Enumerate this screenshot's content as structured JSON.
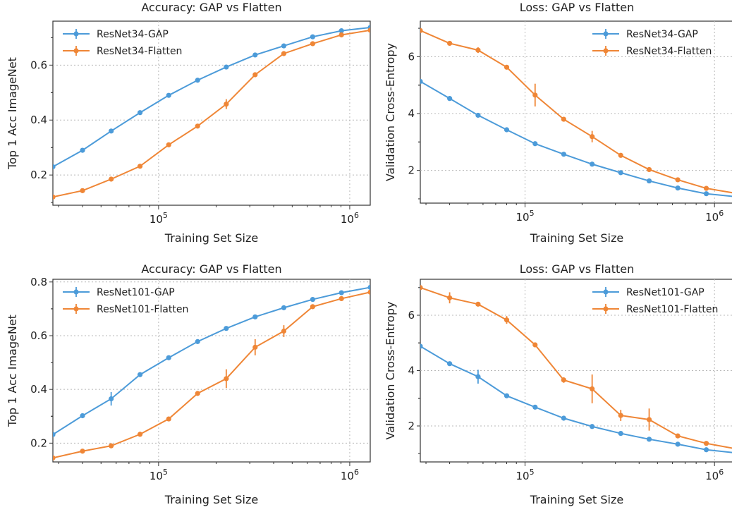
{
  "chart_data": [
    {
      "type": "line",
      "title": "Accuracy: GAP vs Flatten",
      "xlabel": "Training Set Size",
      "ylabel": "Top 1 Acc ImageNet",
      "xscale": "log",
      "xlim": [
        28000,
        1280000
      ],
      "ylim": [
        0.09,
        0.76
      ],
      "xticks": [
        {
          "value": 100000,
          "base": "10",
          "exp": "5"
        },
        {
          "value": 1000000,
          "base": "10",
          "exp": "6"
        }
      ],
      "yticks": [
        {
          "value": 0.2,
          "label": "0.2"
        },
        {
          "value": 0.4,
          "label": "0.4"
        },
        {
          "value": 0.6,
          "label": "0.6"
        }
      ],
      "grid": true,
      "legend": "top-left",
      "x": [
        28000,
        40000,
        56500,
        80000,
        113000,
        160000,
        226000,
        320000,
        452000,
        640000,
        905000,
        1281000
      ],
      "series": [
        {
          "name": "ResNet34-GAP",
          "color": "#4c9bd9",
          "values": [
            0.23,
            0.29,
            0.36,
            0.427,
            0.49,
            0.545,
            0.593,
            0.637,
            0.67,
            0.703,
            0.725,
            0.737
          ],
          "errors": [
            0.003,
            0.003,
            0.004,
            0.004,
            0.004,
            0.004,
            0.004,
            0.004,
            0.003,
            0.003,
            0.003,
            0.003
          ]
        },
        {
          "name": "ResNet34-Flatten",
          "color": "#ef8636",
          "values": [
            0.12,
            0.143,
            0.185,
            0.232,
            0.31,
            0.378,
            0.458,
            0.565,
            0.642,
            0.678,
            0.71,
            0.727
          ],
          "errors": [
            0.003,
            0.003,
            0.005,
            0.004,
            0.006,
            0.004,
            0.018,
            0.006,
            0.006,
            0.004,
            0.004,
            0.003
          ]
        }
      ]
    },
    {
      "type": "line",
      "title": "Loss: GAP vs Flatten",
      "xlabel": "Training Set Size",
      "ylabel": "Validation Cross-Entropy",
      "xscale": "log",
      "xlim": [
        28000,
        1280000
      ],
      "ylim": [
        0.85,
        7.25
      ],
      "xticks": [
        {
          "value": 100000,
          "base": "10",
          "exp": "5"
        },
        {
          "value": 1000000,
          "base": "10",
          "exp": "6"
        }
      ],
      "yticks": [
        {
          "value": 2,
          "label": "2"
        },
        {
          "value": 4,
          "label": "4"
        },
        {
          "value": 6,
          "label": "6"
        }
      ],
      "grid": true,
      "legend": "top-right",
      "x": [
        28000,
        40000,
        56500,
        80000,
        113000,
        160000,
        226000,
        320000,
        452000,
        640000,
        905000,
        1281000
      ],
      "series": [
        {
          "name": "ResNet34-GAP",
          "color": "#4c9bd9",
          "values": [
            5.13,
            4.53,
            3.94,
            3.43,
            2.94,
            2.57,
            2.22,
            1.92,
            1.63,
            1.38,
            1.18,
            1.08
          ],
          "errors": [
            0.05,
            0.04,
            0.04,
            0.04,
            0.04,
            0.04,
            0.04,
            0.04,
            0.03,
            0.03,
            0.03,
            0.03
          ]
        },
        {
          "name": "ResNet34-Flatten",
          "color": "#ef8636",
          "values": [
            6.92,
            6.47,
            6.23,
            5.63,
            4.65,
            3.8,
            3.19,
            2.53,
            2.03,
            1.67,
            1.37,
            1.2
          ],
          "errors": [
            0.05,
            0.05,
            0.1,
            0.05,
            0.4,
            0.05,
            0.2,
            0.05,
            0.04,
            0.04,
            0.04,
            0.03
          ]
        }
      ]
    },
    {
      "type": "line",
      "title": "Accuracy: GAP vs Flatten",
      "xlabel": "Training Set Size",
      "ylabel": "Top 1 Acc ImageNet",
      "xscale": "log",
      "xlim": [
        28000,
        1280000
      ],
      "ylim": [
        0.13,
        0.81
      ],
      "xticks": [
        {
          "value": 100000,
          "base": "10",
          "exp": "5"
        },
        {
          "value": 1000000,
          "base": "10",
          "exp": "6"
        }
      ],
      "yticks": [
        {
          "value": 0.2,
          "label": "0.2"
        },
        {
          "value": 0.4,
          "label": "0.4"
        },
        {
          "value": 0.6,
          "label": "0.6"
        },
        {
          "value": 0.8,
          "label": "0.8"
        }
      ],
      "grid": true,
      "legend": "top-left",
      "x": [
        28000,
        40000,
        56500,
        80000,
        113000,
        160000,
        226000,
        320000,
        452000,
        640000,
        905000,
        1281000
      ],
      "series": [
        {
          "name": "ResNet101-GAP",
          "color": "#4c9bd9",
          "values": [
            0.232,
            0.302,
            0.365,
            0.455,
            0.518,
            0.578,
            0.627,
            0.67,
            0.704,
            0.735,
            0.76,
            0.78
          ],
          "errors": [
            0.004,
            0.004,
            0.025,
            0.005,
            0.005,
            0.004,
            0.004,
            0.004,
            0.004,
            0.003,
            0.003,
            0.003
          ]
        },
        {
          "name": "ResNet101-Flatten",
          "color": "#ef8636",
          "values": [
            0.145,
            0.17,
            0.19,
            0.233,
            0.29,
            0.385,
            0.44,
            0.557,
            0.617,
            0.708,
            0.738,
            0.762
          ],
          "errors": [
            0.004,
            0.004,
            0.005,
            0.005,
            0.005,
            0.006,
            0.035,
            0.03,
            0.022,
            0.006,
            0.005,
            0.004
          ]
        }
      ]
    },
    {
      "type": "line",
      "title": "Loss: GAP vs Flatten",
      "xlabel": "Training Set Size",
      "ylabel": "Validation Cross-Entropy",
      "xscale": "log",
      "xlim": [
        28000,
        1280000
      ],
      "ylim": [
        0.7,
        7.3
      ],
      "xticks": [
        {
          "value": 100000,
          "base": "10",
          "exp": "5"
        },
        {
          "value": 1000000,
          "base": "10",
          "exp": "6"
        }
      ],
      "yticks": [
        {
          "value": 2,
          "label": "2"
        },
        {
          "value": 4,
          "label": "4"
        },
        {
          "value": 6,
          "label": "6"
        }
      ],
      "grid": true,
      "legend": "top-right",
      "x": [
        28000,
        40000,
        56500,
        80000,
        113000,
        160000,
        226000,
        320000,
        452000,
        640000,
        905000,
        1281000
      ],
      "series": [
        {
          "name": "ResNet101-GAP",
          "color": "#4c9bd9",
          "values": [
            4.88,
            4.25,
            3.78,
            3.09,
            2.68,
            2.28,
            1.98,
            1.73,
            1.52,
            1.34,
            1.14,
            1.03
          ],
          "errors": [
            0.05,
            0.05,
            0.25,
            0.05,
            0.05,
            0.04,
            0.04,
            0.04,
            0.03,
            0.03,
            0.03,
            0.03
          ]
        },
        {
          "name": "ResNet101-Flatten",
          "color": "#ef8636",
          "values": [
            7.0,
            6.63,
            6.4,
            5.83,
            4.93,
            3.66,
            3.34,
            2.38,
            2.23,
            1.64,
            1.37,
            1.18
          ],
          "errors": [
            0.05,
            0.2,
            0.05,
            0.14,
            0.05,
            0.1,
            0.52,
            0.2,
            0.4,
            0.05,
            0.04,
            0.03
          ]
        }
      ]
    }
  ]
}
